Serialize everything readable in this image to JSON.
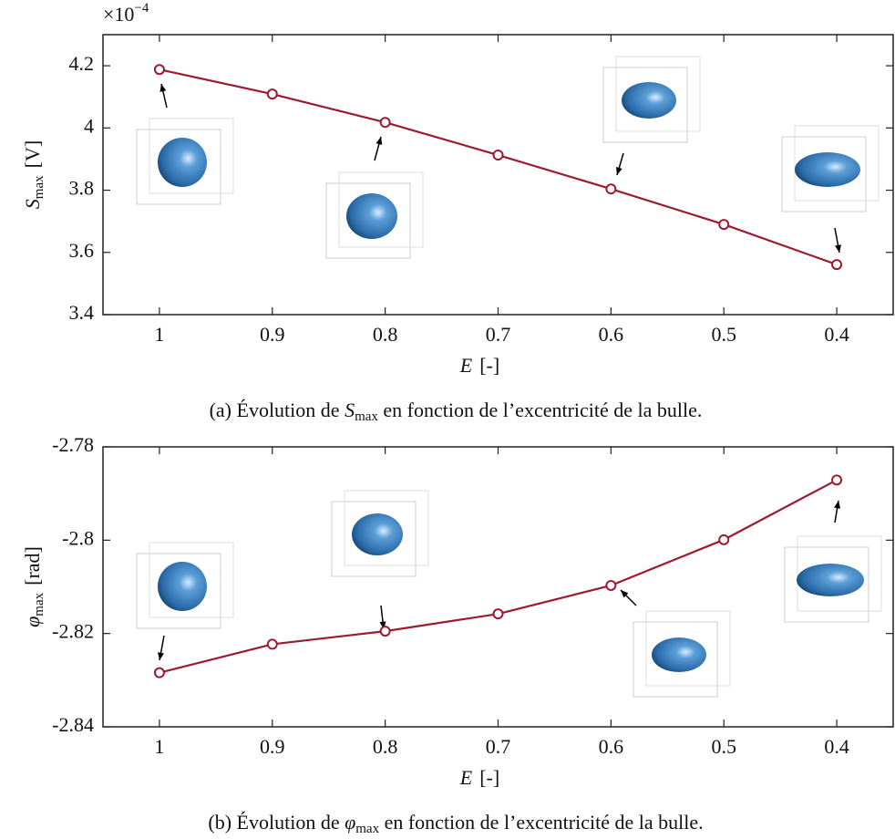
{
  "chart_data": [
    {
      "type": "line",
      "multiplier": {
        "base": "×10",
        "exponent": "−4"
      },
      "ylabel": {
        "symbol": "S",
        "subscript": "max",
        "unit": "[V]"
      },
      "xlabel": {
        "symbol": "E",
        "unit": "[-]"
      },
      "caption": [
        "(a) Évolution de ",
        "S",
        "max",
        " en fonction de l’excentricité de la bulle."
      ],
      "x": [
        1,
        0.9,
        0.8,
        0.7,
        0.6,
        0.5,
        0.4
      ],
      "series": [
        {
          "color": "#9b1b30",
          "values": [
            4.188,
            4.109,
            4.018,
            3.913,
            3.804,
            3.69,
            3.561
          ]
        }
      ],
      "xlim": [
        1.05,
        0.35
      ],
      "ylim": [
        3.4,
        4.3
      ],
      "xticks": [
        1,
        0.9,
        0.8,
        0.7,
        0.6,
        0.5,
        0.4
      ],
      "yticks": [
        3.4,
        3.6,
        3.8,
        4,
        4.2
      ]
    },
    {
      "type": "line",
      "ylabel": {
        "symbol": "φ",
        "subscript": "max",
        "unit": "[rad]"
      },
      "xlabel": {
        "symbol": "E",
        "unit": "[-]"
      },
      "caption": [
        "(b) Évolution de ",
        "φ",
        "max",
        " en fonction de l’excentricité de la bulle."
      ],
      "x": [
        1,
        0.9,
        0.8,
        0.7,
        0.6,
        0.5,
        0.4
      ],
      "series": [
        {
          "color": "#9b1b30",
          "values": [
            -2.8284,
            -2.8223,
            -2.8195,
            -2.8158,
            -2.8097,
            -2.7999,
            -2.7871
          ]
        }
      ],
      "xlim": [
        1.05,
        0.35
      ],
      "ylim": [
        -2.84,
        -2.78
      ],
      "xticks": [
        1,
        0.9,
        0.8,
        0.7,
        0.6,
        0.5,
        0.4
      ],
      "yticks": [
        -2.84,
        -2.82,
        -2.8,
        -2.78
      ]
    }
  ]
}
